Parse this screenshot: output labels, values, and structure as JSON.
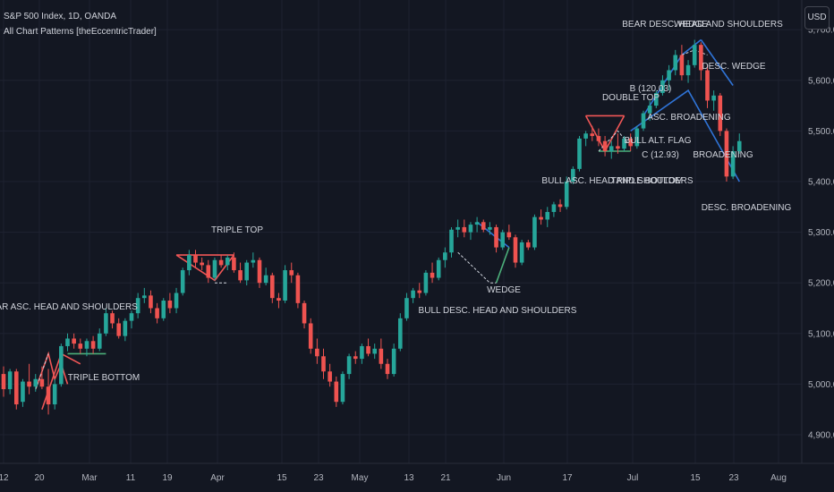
{
  "header": {
    "symbol_line": "S&P 500 Index, 1D, OANDA",
    "indicator_line": "All Chart Patterns [theEccentricTrader]",
    "currency_button": "USD"
  },
  "colors": {
    "background": "#131722",
    "grid": "#1e2230",
    "up": "#26a69a",
    "down": "#ef5350",
    "bear_pattern": "#f05656",
    "bull_pattern": "#4caf7a",
    "wedge_pattern": "#2f73d6",
    "axis_text": "#b2b5be"
  },
  "chart_data": {
    "type": "candlestick",
    "y_ticks": [
      "4,900.0",
      "5,000.0",
      "5,100.0",
      "5,200.0",
      "5,300.0",
      "5,400.0",
      "5,500.0",
      "5,600.0",
      "5,700.0"
    ],
    "ylim": [
      4860,
      5720
    ],
    "x_ticks": [
      "12",
      "20",
      "Mar",
      "11",
      "19",
      "Apr",
      "15",
      "23",
      "May",
      "13",
      "21",
      "Jun",
      "17",
      "Jul",
      "15",
      "23",
      "Aug"
    ],
    "candles": [
      {
        "o": 5020,
        "h": 5035,
        "l": 4975,
        "c": 4990
      },
      {
        "o": 4990,
        "h": 5030,
        "l": 4980,
        "c": 5025
      },
      {
        "o": 5025,
        "h": 5030,
        "l": 4950,
        "c": 4960
      },
      {
        "o": 4965,
        "h": 5010,
        "l": 4955,
        "c": 5005
      },
      {
        "o": 5005,
        "h": 5040,
        "l": 4980,
        "c": 4995
      },
      {
        "o": 4995,
        "h": 5020,
        "l": 4985,
        "c": 5010
      },
      {
        "o": 5010,
        "h": 5035,
        "l": 4990,
        "c": 4995
      },
      {
        "o": 4995,
        "h": 5030,
        "l": 4940,
        "c": 4960
      },
      {
        "o": 4960,
        "h": 5010,
        "l": 4950,
        "c": 5000
      },
      {
        "o": 5000,
        "h": 5080,
        "l": 4995,
        "c": 5075
      },
      {
        "o": 5075,
        "h": 5100,
        "l": 5065,
        "c": 5090
      },
      {
        "o": 5090,
        "h": 5100,
        "l": 5070,
        "c": 5080
      },
      {
        "o": 5080,
        "h": 5090,
        "l": 5060,
        "c": 5070
      },
      {
        "o": 5070,
        "h": 5090,
        "l": 5055,
        "c": 5085
      },
      {
        "o": 5085,
        "h": 5095,
        "l": 5060,
        "c": 5070
      },
      {
        "o": 5070,
        "h": 5110,
        "l": 5065,
        "c": 5100
      },
      {
        "o": 5100,
        "h": 5150,
        "l": 5095,
        "c": 5140
      },
      {
        "o": 5140,
        "h": 5145,
        "l": 5110,
        "c": 5120
      },
      {
        "o": 5120,
        "h": 5130,
        "l": 5090,
        "c": 5095
      },
      {
        "o": 5095,
        "h": 5130,
        "l": 5085,
        "c": 5125
      },
      {
        "o": 5125,
        "h": 5145,
        "l": 5110,
        "c": 5140
      },
      {
        "o": 5140,
        "h": 5180,
        "l": 5130,
        "c": 5170
      },
      {
        "o": 5170,
        "h": 5190,
        "l": 5160,
        "c": 5175
      },
      {
        "o": 5175,
        "h": 5185,
        "l": 5140,
        "c": 5150
      },
      {
        "o": 5150,
        "h": 5160,
        "l": 5120,
        "c": 5130
      },
      {
        "o": 5130,
        "h": 5170,
        "l": 5125,
        "c": 5165
      },
      {
        "o": 5165,
        "h": 5180,
        "l": 5140,
        "c": 5150
      },
      {
        "o": 5150,
        "h": 5190,
        "l": 5140,
        "c": 5180
      },
      {
        "o": 5180,
        "h": 5230,
        "l": 5175,
        "c": 5225
      },
      {
        "o": 5225,
        "h": 5265,
        "l": 5215,
        "c": 5255
      },
      {
        "o": 5255,
        "h": 5265,
        "l": 5230,
        "c": 5240
      },
      {
        "o": 5240,
        "h": 5250,
        "l": 5225,
        "c": 5235
      },
      {
        "o": 5235,
        "h": 5245,
        "l": 5200,
        "c": 5210
      },
      {
        "o": 5210,
        "h": 5250,
        "l": 5205,
        "c": 5245
      },
      {
        "o": 5245,
        "h": 5255,
        "l": 5230,
        "c": 5235
      },
      {
        "o": 5235,
        "h": 5255,
        "l": 5225,
        "c": 5250
      },
      {
        "o": 5250,
        "h": 5260,
        "l": 5220,
        "c": 5225
      },
      {
        "o": 5225,
        "h": 5240,
        "l": 5200,
        "c": 5205
      },
      {
        "o": 5205,
        "h": 5245,
        "l": 5195,
        "c": 5240
      },
      {
        "o": 5240,
        "h": 5260,
        "l": 5230,
        "c": 5245
      },
      {
        "o": 5245,
        "h": 5250,
        "l": 5190,
        "c": 5200
      },
      {
        "o": 5200,
        "h": 5230,
        "l": 5195,
        "c": 5215
      },
      {
        "o": 5215,
        "h": 5220,
        "l": 5160,
        "c": 5170
      },
      {
        "o": 5170,
        "h": 5180,
        "l": 5150,
        "c": 5165
      },
      {
        "o": 5165,
        "h": 5235,
        "l": 5160,
        "c": 5225
      },
      {
        "o": 5225,
        "h": 5240,
        "l": 5200,
        "c": 5215
      },
      {
        "o": 5215,
        "h": 5220,
        "l": 5150,
        "c": 5160
      },
      {
        "o": 5160,
        "h": 5165,
        "l": 5110,
        "c": 5120
      },
      {
        "o": 5120,
        "h": 5130,
        "l": 5060,
        "c": 5070
      },
      {
        "o": 5070,
        "h": 5090,
        "l": 5040,
        "c": 5055
      },
      {
        "o": 5055,
        "h": 5070,
        "l": 5010,
        "c": 5025
      },
      {
        "o": 5025,
        "h": 5040,
        "l": 4995,
        "c": 5005
      },
      {
        "o": 5005,
        "h": 5015,
        "l": 4955,
        "c": 4965
      },
      {
        "o": 4965,
        "h": 5025,
        "l": 4960,
        "c": 5020
      },
      {
        "o": 5020,
        "h": 5060,
        "l": 5010,
        "c": 5055
      },
      {
        "o": 5055,
        "h": 5065,
        "l": 5040,
        "c": 5050
      },
      {
        "o": 5050,
        "h": 5080,
        "l": 5040,
        "c": 5075
      },
      {
        "o": 5075,
        "h": 5090,
        "l": 5055,
        "c": 5060
      },
      {
        "o": 5060,
        "h": 5080,
        "l": 5050,
        "c": 5070
      },
      {
        "o": 5070,
        "h": 5090,
        "l": 5030,
        "c": 5040
      },
      {
        "o": 5040,
        "h": 5050,
        "l": 5010,
        "c": 5020
      },
      {
        "o": 5020,
        "h": 5080,
        "l": 5015,
        "c": 5070
      },
      {
        "o": 5070,
        "h": 5140,
        "l": 5065,
        "c": 5130
      },
      {
        "o": 5130,
        "h": 5180,
        "l": 5125,
        "c": 5170
      },
      {
        "o": 5170,
        "h": 5190,
        "l": 5160,
        "c": 5185
      },
      {
        "o": 5185,
        "h": 5200,
        "l": 5170,
        "c": 5180
      },
      {
        "o": 5180,
        "h": 5225,
        "l": 5175,
        "c": 5220
      },
      {
        "o": 5220,
        "h": 5240,
        "l": 5200,
        "c": 5210
      },
      {
        "o": 5210,
        "h": 5250,
        "l": 5205,
        "c": 5245
      },
      {
        "o": 5245,
        "h": 5270,
        "l": 5230,
        "c": 5260
      },
      {
        "o": 5260,
        "h": 5310,
        "l": 5250,
        "c": 5305
      },
      {
        "o": 5305,
        "h": 5325,
        "l": 5290,
        "c": 5310
      },
      {
        "o": 5310,
        "h": 5325,
        "l": 5290,
        "c": 5300
      },
      {
        "o": 5300,
        "h": 5320,
        "l": 5285,
        "c": 5315
      },
      {
        "o": 5315,
        "h": 5330,
        "l": 5300,
        "c": 5320
      },
      {
        "o": 5320,
        "h": 5325,
        "l": 5300,
        "c": 5305
      },
      {
        "o": 5305,
        "h": 5320,
        "l": 5295,
        "c": 5310
      },
      {
        "o": 5310,
        "h": 5315,
        "l": 5260,
        "c": 5270
      },
      {
        "o": 5270,
        "h": 5305,
        "l": 5265,
        "c": 5300
      },
      {
        "o": 5300,
        "h": 5315,
        "l": 5285,
        "c": 5290
      },
      {
        "o": 5290,
        "h": 5295,
        "l": 5230,
        "c": 5240
      },
      {
        "o": 5240,
        "h": 5285,
        "l": 5235,
        "c": 5280
      },
      {
        "o": 5280,
        "h": 5285,
        "l": 5265,
        "c": 5270
      },
      {
        "o": 5270,
        "h": 5335,
        "l": 5265,
        "c": 5330
      },
      {
        "o": 5330,
        "h": 5345,
        "l": 5315,
        "c": 5325
      },
      {
        "o": 5325,
        "h": 5350,
        "l": 5310,
        "c": 5340
      },
      {
        "o": 5340,
        "h": 5360,
        "l": 5330,
        "c": 5355
      },
      {
        "o": 5355,
        "h": 5365,
        "l": 5340,
        "c": 5350
      },
      {
        "o": 5350,
        "h": 5410,
        "l": 5345,
        "c": 5400
      },
      {
        "o": 5400,
        "h": 5430,
        "l": 5395,
        "c": 5425
      },
      {
        "o": 5425,
        "h": 5490,
        "l": 5420,
        "c": 5485
      },
      {
        "o": 5485,
        "h": 5500,
        "l": 5470,
        "c": 5495
      },
      {
        "o": 5495,
        "h": 5510,
        "l": 5480,
        "c": 5490
      },
      {
        "o": 5490,
        "h": 5505,
        "l": 5470,
        "c": 5480
      },
      {
        "o": 5480,
        "h": 5490,
        "l": 5450,
        "c": 5460
      },
      {
        "o": 5460,
        "h": 5480,
        "l": 5445,
        "c": 5470
      },
      {
        "o": 5470,
        "h": 5495,
        "l": 5455,
        "c": 5465
      },
      {
        "o": 5465,
        "h": 5490,
        "l": 5460,
        "c": 5485
      },
      {
        "o": 5485,
        "h": 5495,
        "l": 5460,
        "c": 5470
      },
      {
        "o": 5470,
        "h": 5510,
        "l": 5465,
        "c": 5505
      },
      {
        "o": 5505,
        "h": 5540,
        "l": 5500,
        "c": 5535
      },
      {
        "o": 5535,
        "h": 5560,
        "l": 5520,
        "c": 5550
      },
      {
        "o": 5550,
        "h": 5580,
        "l": 5545,
        "c": 5575
      },
      {
        "o": 5575,
        "h": 5610,
        "l": 5570,
        "c": 5600
      },
      {
        "o": 5600,
        "h": 5630,
        "l": 5580,
        "c": 5620
      },
      {
        "o": 5620,
        "h": 5660,
        "l": 5610,
        "c": 5650
      },
      {
        "o": 5650,
        "h": 5670,
        "l": 5600,
        "c": 5610
      },
      {
        "o": 5610,
        "h": 5640,
        "l": 5595,
        "c": 5630
      },
      {
        "o": 5630,
        "h": 5680,
        "l": 5625,
        "c": 5670
      },
      {
        "o": 5670,
        "h": 5675,
        "l": 5600,
        "c": 5620
      },
      {
        "o": 5620,
        "h": 5630,
        "l": 5545,
        "c": 5560
      },
      {
        "o": 5560,
        "h": 5580,
        "l": 5540,
        "c": 5570
      },
      {
        "o": 5570,
        "h": 5575,
        "l": 5490,
        "c": 5500
      },
      {
        "o": 5500,
        "h": 5505,
        "l": 5400,
        "c": 5410
      },
      {
        "o": 5410,
        "h": 5470,
        "l": 5405,
        "c": 5460
      },
      {
        "o": 5460,
        "h": 5495,
        "l": 5455,
        "c": 5480
      }
    ],
    "patterns": [
      {
        "label": "BEAR ASC. HEAD AND SHOULDERS",
        "style": "bear"
      },
      {
        "label": "TRIPLE BOTTOM",
        "style": "bull"
      },
      {
        "label": "TRIPLE TOP",
        "style": "bear"
      },
      {
        "label": "WEDGE",
        "style": "wedge"
      },
      {
        "label": "BULL DESC. HEAD AND SHOULDERS",
        "style": "bull"
      },
      {
        "label": "DOUBLE TOP",
        "style": "bear"
      },
      {
        "label": "BULL ASC. HEAD AND SHOULDERS",
        "style": "bull"
      },
      {
        "label": "TRIPLE BOTTOM",
        "style": "bull"
      },
      {
        "label": "B (120.03)",
        "style": "wedge"
      },
      {
        "label": "BULL ALT. FLAG",
        "style": "bull"
      },
      {
        "label": "C (12.93)",
        "style": "bull"
      },
      {
        "label": "ASC. BROADENING",
        "style": "wedge"
      },
      {
        "label": "BEAR DESC. HEAD AND SHOULDERS",
        "style": "bear"
      },
      {
        "label": "WEDGE",
        "style": "wedge"
      },
      {
        "label": "DESC. WEDGE",
        "style": "wedge"
      },
      {
        "label": "BROADENING",
        "style": "wedge"
      },
      {
        "label": "DESC. BROADENING",
        "style": "wedge"
      }
    ]
  }
}
